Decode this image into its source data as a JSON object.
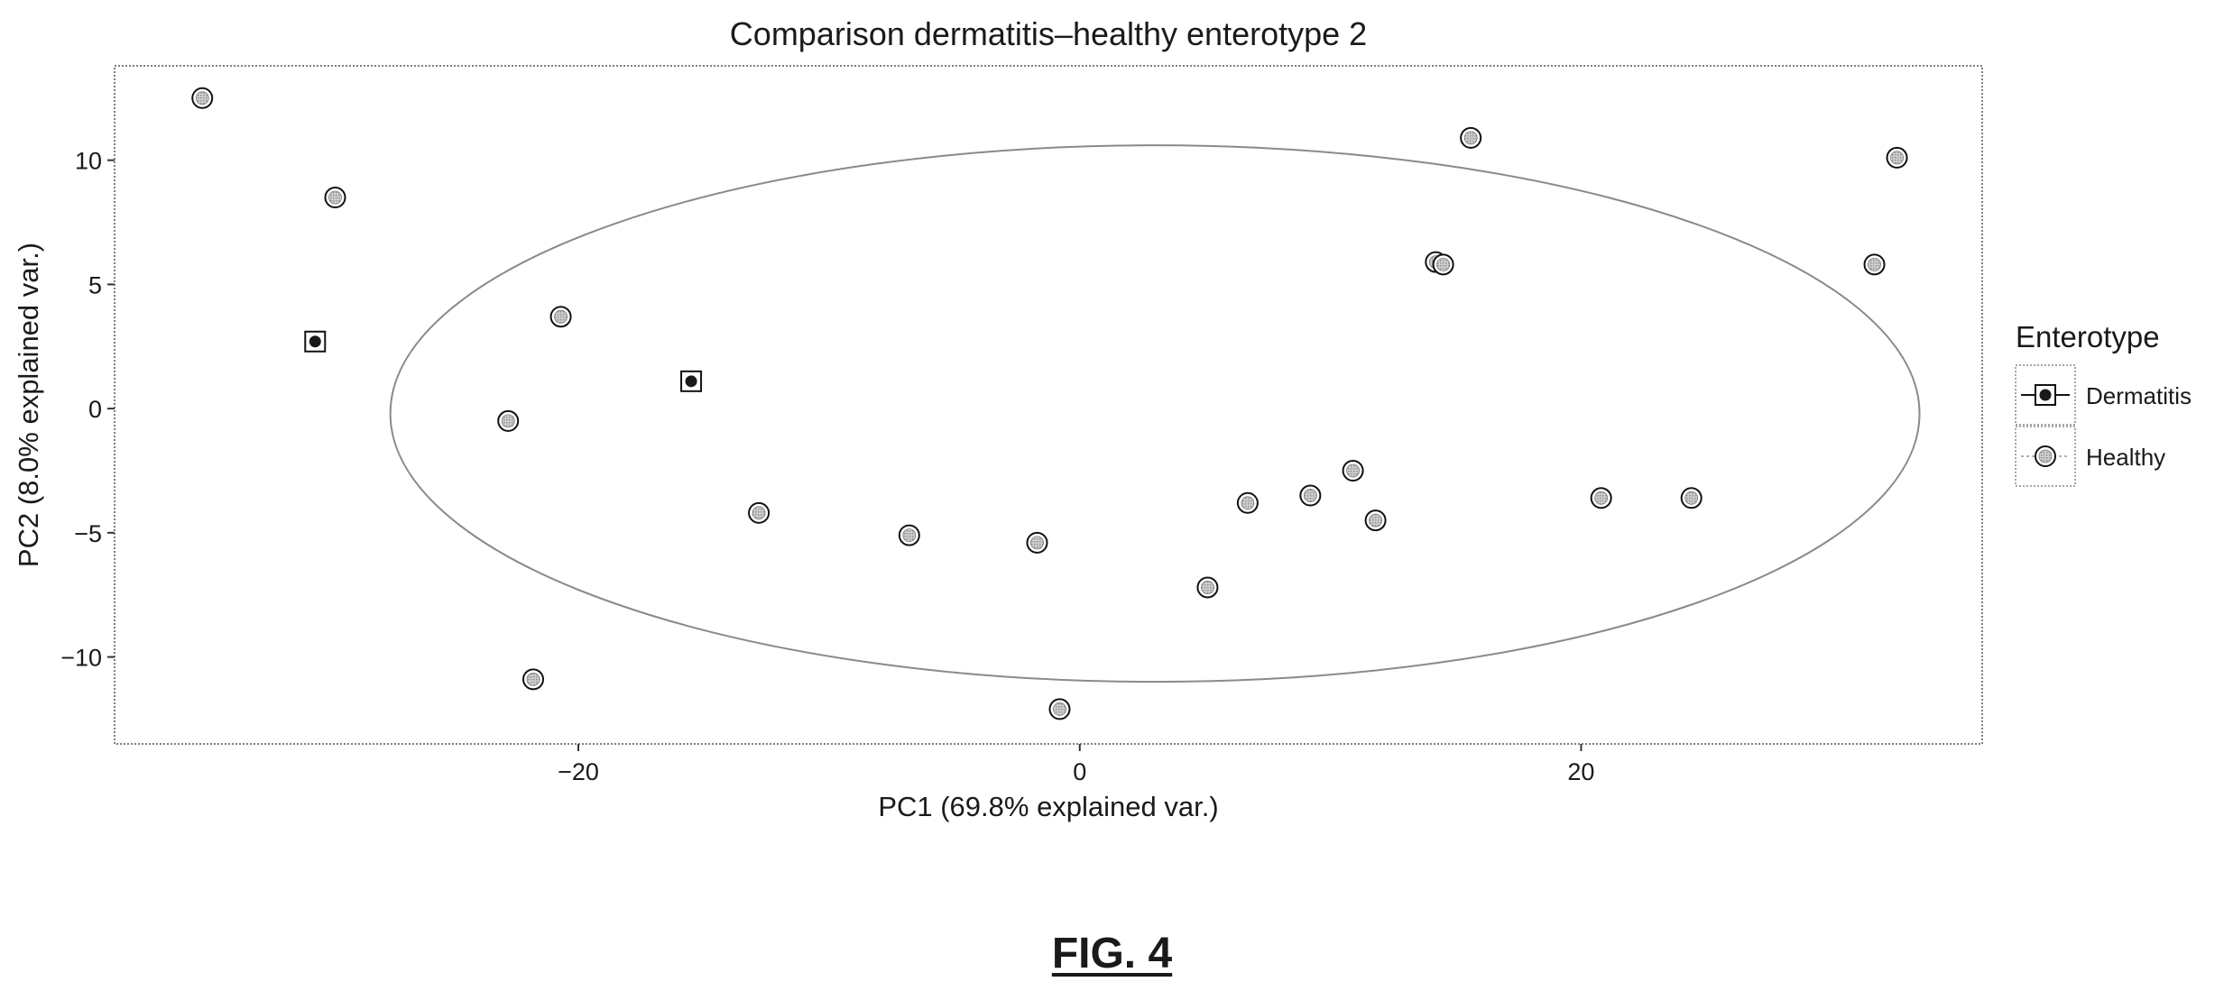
{
  "chart_data": {
    "type": "scatter",
    "title": "Comparison dermatitis–healthy enterotype 2",
    "xlabel": "PC1 (69.8% explained var.)",
    "ylabel": "PC2 (8.0% explained var.)",
    "xlim": [
      -38.5,
      36
    ],
    "ylim": [
      -13.5,
      13.8
    ],
    "x_ticks": [
      -20,
      0,
      20
    ],
    "x_tick_labels": [
      "−20",
      "0",
      "20"
    ],
    "y_ticks": [
      -10,
      -5,
      0,
      5,
      10
    ],
    "y_tick_labels": [
      "−10",
      "−5",
      "0",
      "5",
      "10"
    ],
    "grid": false,
    "legend": {
      "title": "Enterotype",
      "position": "right"
    },
    "series": [
      {
        "name": "Dermatitis",
        "marker": "square-with-dot",
        "points": [
          {
            "x": -30.5,
            "y": 2.7
          },
          {
            "x": -15.5,
            "y": 1.1
          }
        ]
      },
      {
        "name": "Healthy",
        "marker": "circle-shaded",
        "points": [
          {
            "x": -35,
            "y": 12.5
          },
          {
            "x": -29.7,
            "y": 8.5
          },
          {
            "x": -20.7,
            "y": 3.7
          },
          {
            "x": -22.8,
            "y": -0.5
          },
          {
            "x": -21.8,
            "y": -10.9
          },
          {
            "x": -12.8,
            "y": -4.2
          },
          {
            "x": -6.8,
            "y": -5.1
          },
          {
            "x": -1.7,
            "y": -5.4
          },
          {
            "x": -0.8,
            "y": -12.1
          },
          {
            "x": 5.1,
            "y": -7.2
          },
          {
            "x": 6.7,
            "y": -3.8
          },
          {
            "x": 9.2,
            "y": -3.5
          },
          {
            "x": 10.9,
            "y": -2.5
          },
          {
            "x": 11.8,
            "y": -4.5
          },
          {
            "x": 14.2,
            "y": 5.9
          },
          {
            "x": 14.5,
            "y": 5.8
          },
          {
            "x": 15.6,
            "y": 10.9
          },
          {
            "x": 20.8,
            "y": -3.6
          },
          {
            "x": 24.4,
            "y": -3.6
          },
          {
            "x": 31.7,
            "y": 5.8
          },
          {
            "x": 32.6,
            "y": 10.1
          }
        ]
      }
    ],
    "ellipse": {
      "center": [
        3,
        -0.2
      ],
      "rx": 30.5,
      "ry": 10.8
    }
  },
  "caption": "FIG. 4"
}
